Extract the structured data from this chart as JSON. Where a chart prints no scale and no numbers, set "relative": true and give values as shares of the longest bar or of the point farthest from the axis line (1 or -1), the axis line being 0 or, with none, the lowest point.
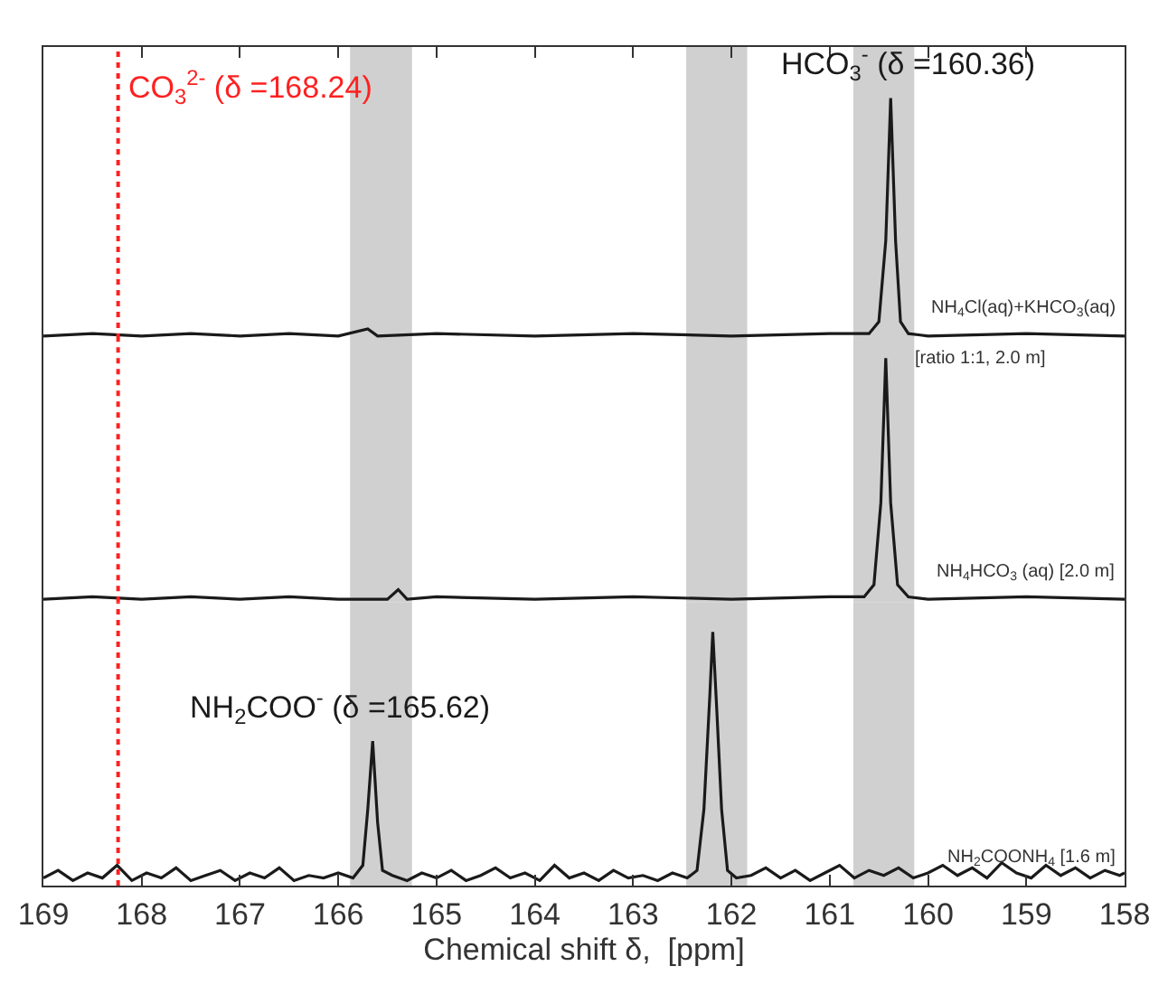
{
  "chart_data": [
    {
      "type": "line",
      "relative": true,
      "xlim": [
        169,
        158
      ],
      "xticks": [
        169,
        168,
        167,
        166,
        165,
        164,
        163,
        162,
        161,
        160,
        159,
        158
      ],
      "tick_labels": false,
      "series": [
        {
          "name": "NH$_{4}$Cl(aq)+KHCO$_{3}$(aq)\n[ratio 1:1, 2.0 m]",
          "color": "#1a1a1a",
          "x": [
            169,
            168.5,
            168,
            167.5,
            167,
            166.5,
            166,
            165.7,
            165.6,
            165,
            164,
            163,
            162,
            161,
            160.6,
            160.5,
            160.43,
            160.38,
            160.33,
            160.28,
            160.2,
            160,
            159,
            158
          ],
          "values": [
            0,
            0.01,
            0,
            0.01,
            0,
            0.01,
            0,
            0.03,
            0,
            0.01,
            0,
            0.01,
            0,
            0.01,
            0.01,
            0.06,
            0.4,
            1,
            0.4,
            0.06,
            0.01,
            0,
            0.01,
            0
          ]
        }
      ],
      "annotations": [
        {
          "text": "HCO$_{3}$$^{-}$ (δ =160.36)",
          "x": 160.38,
          "y": 1
        }
      ],
      "ref_lines": [
        {
          "axis": "x",
          "value": 168.24,
          "label": "CO$_{3}$$^{2-}$ (δ =168.24)",
          "color": "#ff2020",
          "line_style": "dotted"
        }
      ],
      "bands": [
        {
          "axis": "x",
          "from": 165.88,
          "to": 165.25,
          "color": "#d0d0d0"
        },
        {
          "axis": "x",
          "from": 162.46,
          "to": 161.84,
          "color": "#d0d0d0"
        },
        {
          "axis": "x",
          "from": 160.76,
          "to": 160.14,
          "color": "#d0d0d0"
        }
      ]
    },
    {
      "type": "line",
      "relative": true,
      "xlim": [
        169,
        158
      ],
      "tick_labels": false,
      "series": [
        {
          "name": "NH$_{4}$HCO$_{3}$ (aq) [2.0 m]",
          "color": "#1a1a1a",
          "x": [
            169,
            168.5,
            168,
            167.5,
            167,
            166.5,
            166,
            165.5,
            165.39,
            165.3,
            165,
            164,
            163,
            162,
            161,
            160.65,
            160.55,
            160.48,
            160.43,
            160.38,
            160.31,
            160.2,
            160,
            159,
            158
          ],
          "values": [
            0,
            0.01,
            0,
            0.01,
            0,
            0.01,
            0,
            0,
            0.04,
            0,
            0.01,
            0,
            0.01,
            0,
            0.01,
            0.01,
            0.06,
            0.4,
            1,
            0.4,
            0.06,
            0.01,
            0,
            0.01,
            0
          ]
        }
      ],
      "ref_lines": [
        {
          "axis": "x",
          "value": 168.24,
          "color": "#ff2020",
          "line_style": "dotted"
        }
      ],
      "bands": [
        {
          "axis": "x",
          "from": 165.88,
          "to": 165.25,
          "color": "#d0d0d0"
        },
        {
          "axis": "x",
          "from": 162.46,
          "to": 161.84,
          "color": "#d0d0d0"
        },
        {
          "axis": "x",
          "from": 160.76,
          "to": 160.14,
          "color": "#d0d0d0"
        }
      ]
    },
    {
      "type": "line",
      "relative": true,
      "xlim": [
        169,
        158
      ],
      "xticks": [
        169,
        168,
        167,
        166,
        165,
        164,
        163,
        162,
        161,
        160,
        159,
        158
      ],
      "tick_labels": "x",
      "xlabel": "Chemical shift δ,  [ppm]",
      "series": [
        {
          "name": "NH$_{2}$COONH$_{4}$ [1.6 m]",
          "color": "#1a1a1a",
          "x": [
            169.0,
            168.85,
            168.7,
            168.55,
            168.4,
            168.25,
            168.1,
            167.95,
            167.8,
            167.65,
            167.5,
            167.35,
            167.2,
            167.05,
            166.9,
            166.75,
            166.6,
            166.45,
            166.3,
            166.15,
            166.0,
            165.85,
            165.75,
            165.7,
            165.65,
            165.6,
            165.55,
            165.45,
            165.3,
            165.15,
            165.0,
            164.85,
            164.7,
            164.55,
            164.4,
            164.25,
            164.1,
            163.95,
            163.8,
            163.65,
            163.5,
            163.35,
            163.2,
            163.05,
            162.9,
            162.75,
            162.6,
            162.45,
            162.35,
            162.28,
            162.22,
            162.19,
            162.15,
            162.1,
            162.04,
            161.95,
            161.8,
            161.65,
            161.5,
            161.35,
            161.2,
            161.05,
            160.9,
            160.75,
            160.6,
            160.45,
            160.3,
            160.15,
            160.0,
            159.85,
            159.7,
            159.55,
            159.4,
            159.25,
            159.1,
            158.95,
            158.8,
            158.65,
            158.5,
            158.35,
            158.2,
            158.05,
            158.0
          ],
          "values": [
            0.03,
            0.06,
            0.02,
            0.05,
            0.03,
            0.08,
            0.02,
            0.05,
            0.03,
            0.07,
            0.02,
            0.04,
            0.06,
            0.02,
            0.05,
            0.03,
            0.07,
            0.02,
            0.04,
            0.03,
            0.05,
            0.03,
            0.08,
            0.3,
            0.57,
            0.25,
            0.06,
            0.04,
            0.02,
            0.05,
            0.03,
            0.06,
            0.02,
            0.04,
            0.07,
            0.03,
            0.05,
            0.02,
            0.08,
            0.03,
            0.05,
            0.02,
            0.06,
            0.03,
            0.04,
            0.02,
            0.05,
            0.03,
            0.06,
            0.3,
            0.75,
            1,
            0.7,
            0.3,
            0.06,
            0.03,
            0.04,
            0.07,
            0.03,
            0.06,
            0.02,
            0.05,
            0.08,
            0.03,
            0.06,
            0.04,
            0.07,
            0.03,
            0.05,
            0.08,
            0.04,
            0.07,
            0.03,
            0.09,
            0.05,
            0.03,
            0.08,
            0.04,
            0.07,
            0.03,
            0.06,
            0.04,
            0.05
          ]
        }
      ],
      "annotations": [
        {
          "text": "NH$_{2}$COO$^{-}$ (δ =165.62)",
          "x": 165.65,
          "y": 0.57
        }
      ],
      "ref_lines": [
        {
          "axis": "x",
          "value": 168.24,
          "color": "#ff2020",
          "line_style": "dotted"
        }
      ],
      "bands": [
        {
          "axis": "x",
          "from": 165.88,
          "to": 165.25,
          "color": "#d0d0d0"
        },
        {
          "axis": "x",
          "from": 162.46,
          "to": 161.84,
          "color": "#d0d0d0"
        },
        {
          "axis": "x",
          "from": 160.76,
          "to": 160.14,
          "color": "#d0d0d0"
        }
      ]
    }
  ]
}
